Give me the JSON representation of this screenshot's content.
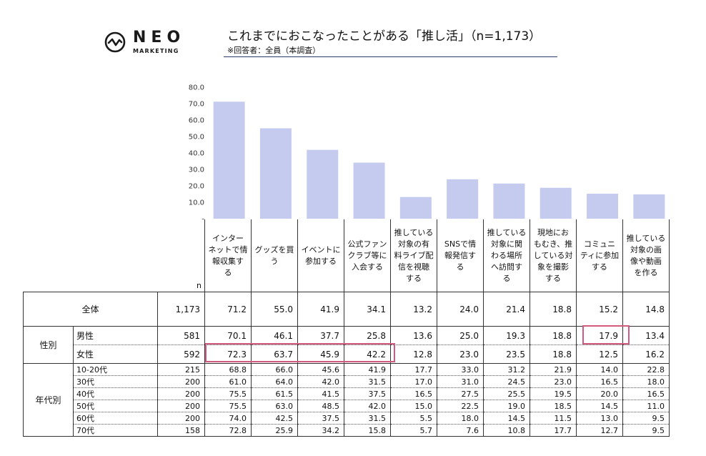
{
  "logo": {
    "name": "NEO",
    "sub": "MARKETING"
  },
  "title": "これまでにおこなったことがある「推し活」（n=1,173）",
  "subtitle": "※回答者：全員（本調査）",
  "chart_data": {
    "type": "bar",
    "categories": [
      "インターネットで情報収集する",
      "グッズを買う",
      "イベントに参加する",
      "公式ファンクラブ等に入会する",
      "推している対象の有料ライブ配信を視聴する",
      "SNSで情報発信する",
      "推している対象に関わる場所へ訪問する",
      "現地におもむき、推している対象を撮影する",
      "コミュニティに参加する",
      "推している対象の画像や動画を作る"
    ],
    "values": [
      71.2,
      55.0,
      41.9,
      34.1,
      13.2,
      24.0,
      21.4,
      18.8,
      15.2,
      14.8
    ],
    "ylim": [
      0,
      80
    ],
    "yticks": [
      "-",
      "10.0",
      "20.0",
      "30.0",
      "40.0",
      "50.0",
      "60.0",
      "70.0",
      "80.0"
    ],
    "bar_color": "#c5cbef",
    "highlight_color": "#d25a7e"
  },
  "table": {
    "n_header": "n",
    "col_headers": [
      [
        "インター",
        "ネットで情",
        "報収集す",
        "る"
      ],
      [
        "グッズを買",
        "う"
      ],
      [
        "イベントに",
        "参加する"
      ],
      [
        "公式ファン",
        "クラブ等に",
        "入会する"
      ],
      [
        "推している",
        "対象の有",
        "料ライブ配",
        "信を視聴",
        "する"
      ],
      [
        "SNSで情",
        "報発信す",
        "る"
      ],
      [
        "推している",
        "対象に関",
        "わる場所",
        "へ訪問す",
        "る"
      ],
      [
        "現地にお",
        "もむき、推",
        "している対",
        "象を撮影",
        "する"
      ],
      [
        "コミュニ",
        "ティに参加",
        "する"
      ],
      [
        "推している",
        "対象の画",
        "像や動画",
        "を作る"
      ]
    ],
    "total": {
      "label": "全体",
      "n": "1,173",
      "values": [
        "71.2",
        "55.0",
        "41.9",
        "34.1",
        "13.2",
        "24.0",
        "21.4",
        "18.8",
        "15.2",
        "14.8"
      ]
    },
    "gender": {
      "label": "性別",
      "rows": [
        {
          "label": "男性",
          "n": "581",
          "values": [
            "70.1",
            "46.1",
            "37.7",
            "25.8",
            "13.6",
            "25.0",
            "19.3",
            "18.8",
            "17.9",
            "13.4"
          ]
        },
        {
          "label": "女性",
          "n": "592",
          "values": [
            "72.3",
            "63.7",
            "45.9",
            "42.2",
            "12.8",
            "23.0",
            "23.5",
            "18.8",
            "12.5",
            "16.2"
          ]
        }
      ]
    },
    "age": {
      "label": "年代別",
      "rows": [
        {
          "label": "10-20代",
          "n": "215",
          "values": [
            "68.8",
            "66.0",
            "45.6",
            "41.9",
            "17.7",
            "33.0",
            "31.2",
            "21.9",
            "14.0",
            "22.8"
          ]
        },
        {
          "label": "30代",
          "n": "200",
          "values": [
            "61.0",
            "64.0",
            "42.0",
            "31.5",
            "17.0",
            "31.0",
            "24.5",
            "23.0",
            "16.5",
            "18.0"
          ]
        },
        {
          "label": "40代",
          "n": "200",
          "values": [
            "75.5",
            "61.5",
            "41.5",
            "37.5",
            "16.5",
            "27.5",
            "25.5",
            "19.5",
            "20.0",
            "16.5"
          ]
        },
        {
          "label": "50代",
          "n": "200",
          "values": [
            "75.5",
            "63.0",
            "48.5",
            "42.0",
            "15.0",
            "22.5",
            "19.0",
            "18.5",
            "14.5",
            "11.0"
          ]
        },
        {
          "label": "60代",
          "n": "200",
          "values": [
            "74.0",
            "42.5",
            "37.5",
            "31.5",
            "5.5",
            "18.0",
            "14.5",
            "11.5",
            "13.0",
            "9.5"
          ]
        },
        {
          "label": "70代",
          "n": "158",
          "values": [
            "72.8",
            "25.9",
            "34.2",
            "15.8",
            "5.7",
            "7.6",
            "10.8",
            "17.7",
            "12.7",
            "9.5"
          ]
        }
      ]
    }
  }
}
